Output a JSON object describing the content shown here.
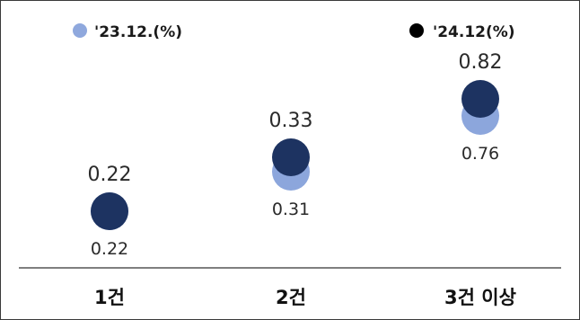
{
  "chart_data": {
    "type": "scatter",
    "categories": [
      "1건",
      "2건",
      "3건 이상"
    ],
    "series": [
      {
        "name": "'23.12.(%)",
        "values": [
          0.22,
          0.31,
          0.76
        ]
      },
      {
        "name": "'24.12(%)",
        "values": [
          0.22,
          0.33,
          0.82
        ]
      }
    ],
    "value_labels": {
      "series_0": [
        "0.22",
        "0.31",
        "0.76"
      ],
      "series_1": [
        "0.22",
        "0.33",
        "0.82"
      ]
    },
    "ylim": [
      0,
      1
    ],
    "grid": false,
    "legend": "top",
    "colors": {
      "series_0": "#8ca6dc",
      "series_0_legend": "#8fa8dd",
      "series_1": "#1d3361",
      "series_1_legend": "#000000",
      "axis": "#333333"
    }
  }
}
